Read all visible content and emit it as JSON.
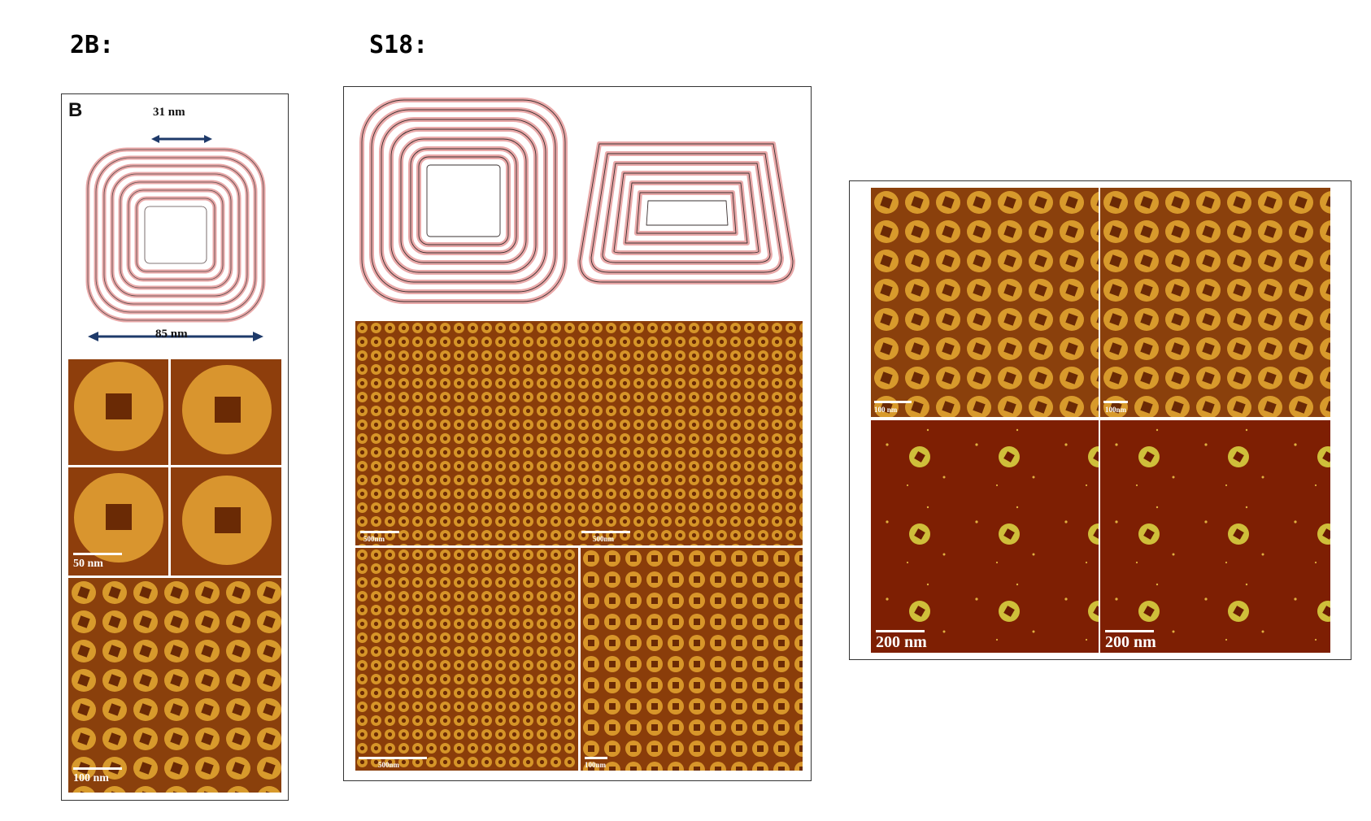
{
  "headings": {
    "left": "2B:",
    "middle": "S18:"
  },
  "panel_2b": {
    "letter": "B",
    "top_dimension": "31 nm",
    "bottom_dimension": "85 nm",
    "zoom_scale": "50 nm",
    "overview_scale": "100 nm"
  },
  "panel_s18": {
    "top_left_scale": "500nm",
    "top_right_scale": "500nm",
    "bottom_left_scale": "500nm",
    "bottom_right_scale": "100nm"
  },
  "panel_right": {
    "top_left_scale": "100 nm",
    "top_right_scale": "100nm",
    "bottom_left_scale": "200 nm",
    "bottom_right_scale": "200 nm"
  },
  "colors": {
    "afm_bg": "#8a3a08",
    "afm_ring": "#d89a2a",
    "afm_dark_bg": "#7a1a02",
    "afm_yellow": "#d4c040",
    "schematic": "#e9a9a9"
  }
}
